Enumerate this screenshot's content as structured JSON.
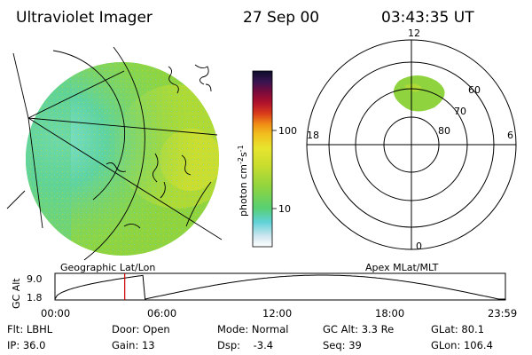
{
  "header": {
    "instrument": "Ultraviolet Imager",
    "date": "27 Sep 00",
    "time": "03:43:35 UT"
  },
  "colorbar": {
    "ticks": [
      "100",
      "10"
    ],
    "unit": "photon cm",
    "unit_exp1": "-2",
    "unit_mid": "s",
    "unit_exp2": "-1",
    "colors": [
      "#ffffff",
      "#cfe6ef",
      "#5fd2d8",
      "#57cf72",
      "#8fd43f",
      "#c8dc2e",
      "#e7e52e",
      "#f2bf1e",
      "#f08a16",
      "#d73a1a",
      "#b0122c",
      "#7a0b3c",
      "#381450",
      "#0d0d2a"
    ]
  },
  "left_panel": {
    "caption": "Geographic Lat/Lon"
  },
  "polar_plot": {
    "caption": "Apex MLat/MLT",
    "mlt_labels": [
      "12",
      "18",
      "6",
      "0"
    ],
    "lat_labels": [
      "60",
      "70",
      "80"
    ]
  },
  "alt_plot": {
    "ylabel": "GC Alt",
    "yticks": [
      "9.0",
      "1.8"
    ],
    "xticks": [
      "00:00",
      "06:00",
      "12:00",
      "18:00",
      "23:59"
    ],
    "marker_time": "03:43"
  },
  "status": {
    "row1": {
      "filter": "Flt: LBHL",
      "door": "Door: Open",
      "mode": "Mode: Normal",
      "gc_alt": "GC Alt: 3.3 Re",
      "glat": "GLat:  80.1"
    },
    "row2": {
      "ip": "IP: 36.0",
      "gain": "Gain: 13",
      "dsp": "Dsp:    -3.4",
      "seq": "Seq: 39",
      "glon": "GLon: 106.4"
    }
  }
}
